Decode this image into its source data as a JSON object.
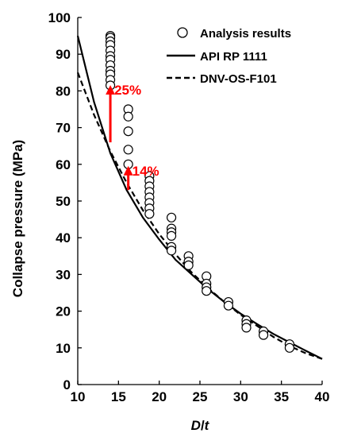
{
  "chart_data": {
    "type": "scatter",
    "title": "",
    "xlabel_italic_1": "D",
    "xlabel_sep": "/",
    "xlabel_italic_2": "t",
    "ylabel": "Collapse  pressure (MPa)",
    "xlim": [
      10,
      40
    ],
    "ylim": [
      0,
      100
    ],
    "x_ticks": [
      "10",
      "15",
      "20",
      "25",
      "30",
      "35",
      "40"
    ],
    "y_ticks": [
      "0",
      "10",
      "20",
      "30",
      "40",
      "50",
      "60",
      "70",
      "80",
      "90",
      "100"
    ],
    "grid": false,
    "legend_position": "top-right",
    "series": [
      {
        "name": "Analysis results",
        "type": "scatter",
        "marker": "open-circle",
        "points": [
          [
            14,
            95
          ],
          [
            14,
            94.5
          ],
          [
            14,
            93.5
          ],
          [
            14,
            92.5
          ],
          [
            14,
            91
          ],
          [
            14,
            89.5
          ],
          [
            14,
            88.5
          ],
          [
            14,
            87
          ],
          [
            14,
            85.5
          ],
          [
            14,
            84.5
          ],
          [
            14,
            83
          ],
          [
            14,
            81.5
          ],
          [
            16.2,
            75
          ],
          [
            16.2,
            73
          ],
          [
            16.2,
            69
          ],
          [
            16.2,
            64
          ],
          [
            16.2,
            60
          ],
          [
            18.8,
            56.8
          ],
          [
            18.8,
            55.5
          ],
          [
            18.8,
            54
          ],
          [
            18.8,
            52.5
          ],
          [
            18.8,
            51
          ],
          [
            18.8,
            49.5
          ],
          [
            18.8,
            48
          ],
          [
            18.8,
            46.5
          ],
          [
            21.5,
            45.5
          ],
          [
            21.5,
            42.5
          ],
          [
            21.5,
            41.5
          ],
          [
            21.5,
            40.5
          ],
          [
            21.5,
            37.5
          ],
          [
            21.5,
            36.5
          ],
          [
            23.6,
            35
          ],
          [
            23.6,
            33.5
          ],
          [
            23.6,
            32.5
          ],
          [
            25.8,
            29.5
          ],
          [
            25.8,
            27.5
          ],
          [
            25.8,
            26.5
          ],
          [
            25.8,
            25.5
          ],
          [
            28.5,
            22.5
          ],
          [
            28.5,
            21.5
          ],
          [
            30.7,
            17.5
          ],
          [
            30.7,
            16.5
          ],
          [
            30.7,
            15.5
          ],
          [
            32.8,
            14.5
          ],
          [
            32.8,
            13.5
          ],
          [
            36,
            11
          ],
          [
            36,
            10
          ]
        ]
      },
      {
        "name": "API RP 1111",
        "type": "line",
        "style": "solid",
        "points": [
          [
            10,
            95
          ],
          [
            12,
            77
          ],
          [
            14,
            63
          ],
          [
            16,
            53
          ],
          [
            18,
            45.5
          ],
          [
            20,
            39.5
          ],
          [
            22,
            34
          ],
          [
            24,
            30
          ],
          [
            26,
            26
          ],
          [
            28,
            22.5
          ],
          [
            30,
            19.3
          ],
          [
            32,
            16.5
          ],
          [
            34,
            13.8
          ],
          [
            36,
            11.5
          ],
          [
            38,
            9.2
          ],
          [
            40,
            7
          ]
        ]
      },
      {
        "name": "DNV-OS-F101",
        "type": "line",
        "style": "dashed",
        "points": [
          [
            10,
            85
          ],
          [
            12,
            73.5
          ],
          [
            14,
            63.5
          ],
          [
            16,
            55
          ],
          [
            18,
            47.5
          ],
          [
            20,
            41
          ],
          [
            22,
            35.5
          ],
          [
            24,
            30.5
          ],
          [
            26,
            26.3
          ],
          [
            28,
            22.5
          ],
          [
            30,
            19
          ],
          [
            32,
            16
          ],
          [
            34,
            13
          ],
          [
            36,
            10.5
          ],
          [
            38,
            8.5
          ],
          [
            40,
            7
          ]
        ]
      }
    ],
    "annotations": [
      {
        "text": "25%",
        "arrow_x": 14,
        "arrow_from": 66,
        "arrow_to": 82,
        "color": "#ff0000"
      },
      {
        "text": "14%",
        "arrow_x": 16.2,
        "arrow_from": 53,
        "arrow_to": 60,
        "color": "#ff0000"
      }
    ]
  }
}
